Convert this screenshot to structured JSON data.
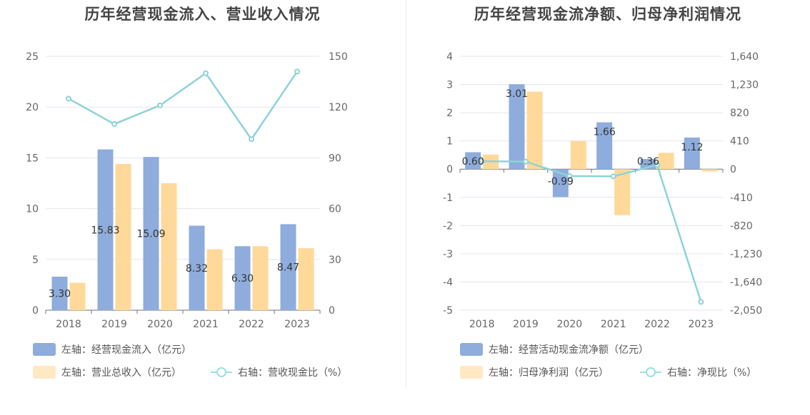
{
  "chart_data": [
    {
      "type": "bar",
      "title": "历年经营现金流入、营业收入情况",
      "categories": [
        "2018",
        "2019",
        "2020",
        "2021",
        "2022",
        "2023"
      ],
      "left_axis": {
        "ticks": [
          "0",
          "5",
          "10",
          "15",
          "20",
          "25"
        ],
        "ylim": [
          0,
          25
        ]
      },
      "right_axis": {
        "ticks": [
          "0",
          "30",
          "60",
          "90",
          "120",
          "150"
        ],
        "ylim": [
          0,
          150
        ]
      },
      "series": [
        {
          "name": "左轴：经营现金流入（亿元）",
          "kind": "bar",
          "axis": "left",
          "color": "#8eacdc",
          "values": [
            3.3,
            15.83,
            15.09,
            8.32,
            6.3,
            8.47
          ],
          "labels": [
            "3.30",
            "15.83",
            "15.09",
            "8.32",
            "6.30",
            "8.47"
          ]
        },
        {
          "name": "左轴：营业总收入（亿元）",
          "kind": "bar",
          "axis": "left",
          "color": "#ffd99a",
          "values": [
            2.7,
            14.4,
            12.5,
            6.0,
            6.3,
            6.1
          ]
        },
        {
          "name": "右轴：营收现金比（%）",
          "kind": "line",
          "axis": "right",
          "color": "#8dd3d7",
          "values": [
            125,
            110,
            121,
            140,
            101,
            141
          ]
        }
      ],
      "grid": true
    },
    {
      "type": "bar",
      "title": "历年经营现金流净额、归母净利润情况",
      "categories": [
        "2018",
        "2019",
        "2020",
        "2021",
        "2022",
        "2023"
      ],
      "left_axis": {
        "ticks": [
          "-5",
          "-4",
          "-3",
          "-2",
          "-1",
          "0",
          "1",
          "2",
          "3",
          "4"
        ],
        "ylim": [
          -5,
          4
        ]
      },
      "right_axis": {
        "ticks": [
          "-2,050",
          "-1,640",
          "-1,230",
          "-820",
          "-410",
          "0",
          "410",
          "820",
          "1,230",
          "1,640"
        ],
        "ylim": [
          -2050,
          1640
        ]
      },
      "series": [
        {
          "name": "左轴：经营活动现金流净额（亿元）",
          "kind": "bar",
          "axis": "left",
          "color": "#8eacdc",
          "values": [
            0.6,
            3.01,
            -0.99,
            1.66,
            0.36,
            1.12
          ],
          "labels": [
            "0.60",
            "3.01",
            "-0.99",
            "1.66",
            "0.36",
            "1.12"
          ]
        },
        {
          "name": "左轴：归母净利润（亿元）",
          "kind": "bar",
          "axis": "left",
          "color": "#ffd99a",
          "values": [
            0.52,
            2.75,
            1.0,
            -1.63,
            0.58,
            -0.08
          ]
        },
        {
          "name": "右轴：净现比（%）",
          "kind": "line",
          "axis": "right",
          "color": "#8dd3d7",
          "values": [
            115,
            110,
            -100,
            -105,
            60,
            -1930
          ]
        }
      ],
      "grid": true
    }
  ]
}
